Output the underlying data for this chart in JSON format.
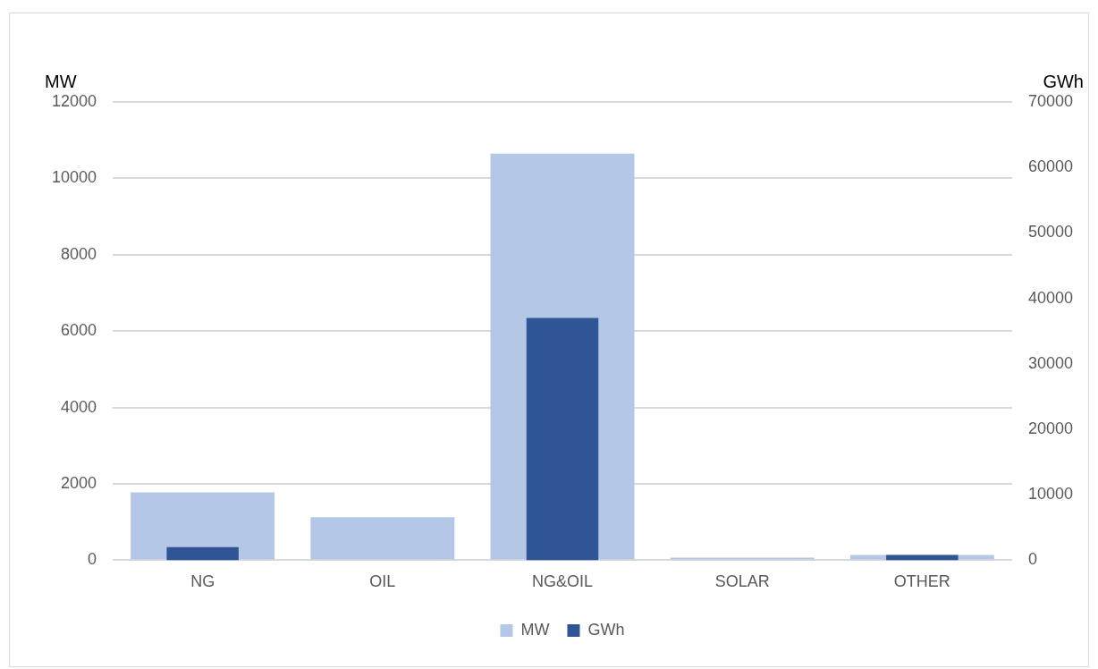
{
  "chart_data": {
    "type": "bar",
    "ylabel": "MW",
    "y2label": "GWh",
    "categories": [
      "NG",
      "OIL",
      "NG&OIL",
      "SOLAR",
      "OTHER"
    ],
    "series": [
      {
        "name": "MW",
        "color": "#b4c7e7",
        "values": [
          1780,
          1130,
          10650,
          70,
          140
        ]
      },
      {
        "name": "GWh",
        "color": "#2f5597",
        "axis": "y2",
        "values": [
          2000,
          0,
          37000,
          0,
          800
        ]
      }
    ],
    "ylim": [
      0,
      12000
    ],
    "yticks": [
      0,
      2000,
      4000,
      6000,
      8000,
      10000,
      12000
    ],
    "y2lim": [
      0,
      70000
    ],
    "y2ticks": [
      0,
      10000,
      20000,
      30000,
      40000,
      50000,
      60000,
      70000
    ],
    "grid": "y",
    "legend": "bottom"
  }
}
